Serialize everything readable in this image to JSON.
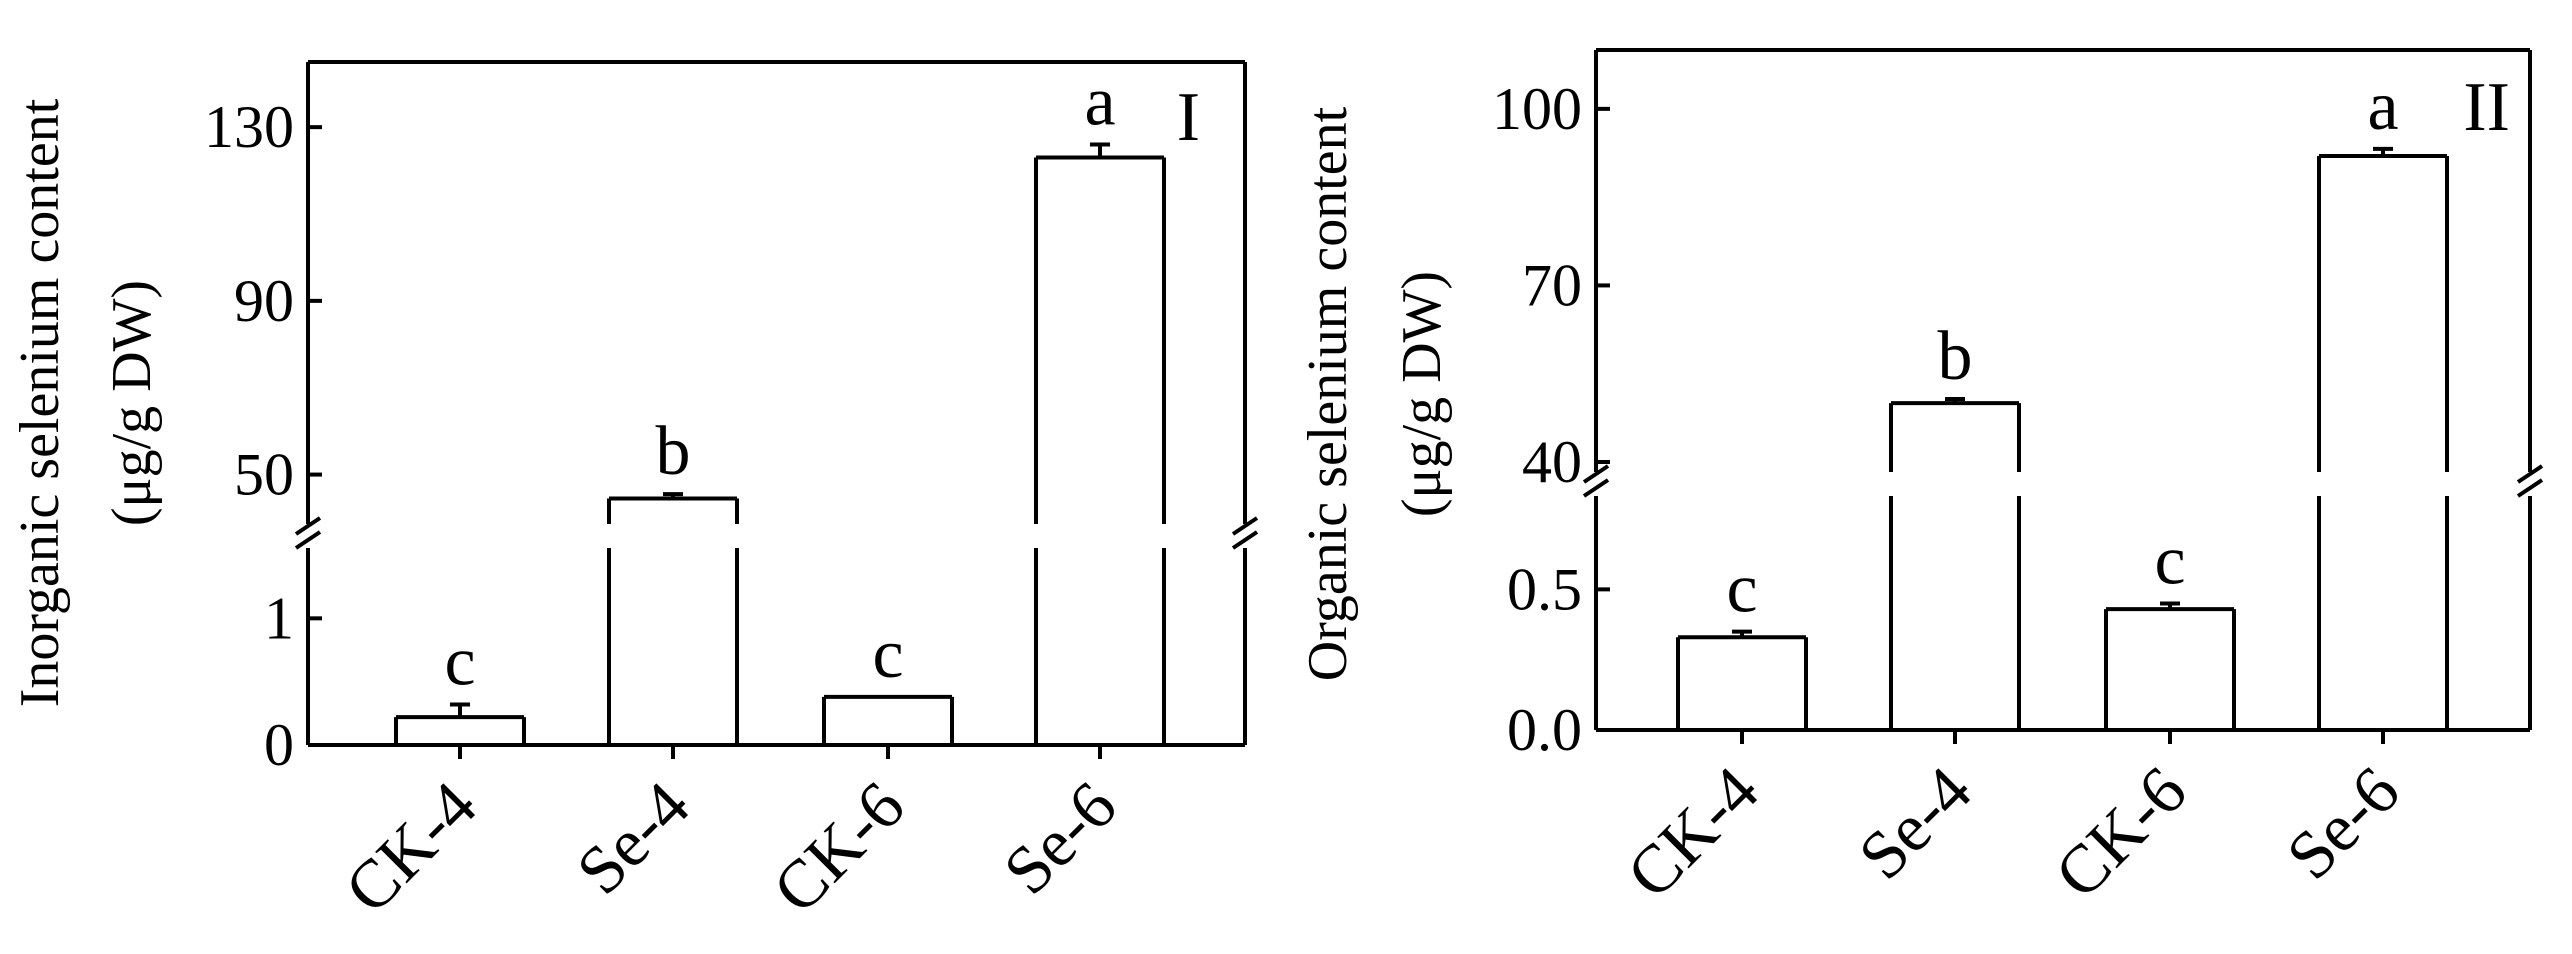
{
  "chart_data": [
    {
      "type": "bar",
      "panel_label": "I",
      "ylabel_line1": "Inorganic selenium content",
      "ylabel_line2": "(μg/g DW)",
      "categories": [
        "CK-4",
        "Se-4",
        "CK-6",
        "Se-6"
      ],
      "values": [
        0.22,
        44.5,
        0.38,
        123
      ],
      "errors": [
        0.1,
        1.0,
        0.0,
        3.0
      ],
      "significance": [
        "c",
        "b",
        "c",
        "a"
      ],
      "axis_break": true,
      "lower_segment": {
        "range": [
          0,
          1.5
        ],
        "ticks": [
          "0",
          "1"
        ],
        "tick_values": [
          0,
          1
        ]
      },
      "upper_segment": {
        "range": [
          40,
          145
        ],
        "ticks": [
          "50",
          "90",
          "130"
        ],
        "tick_values": [
          50,
          90,
          130
        ]
      }
    },
    {
      "type": "bar",
      "panel_label": "II",
      "ylabel_line1": "Organic selenium content",
      "ylabel_line2": "(μg/g DW)",
      "categories": [
        "CK-4",
        "Se-4",
        "CK-6",
        "Se-6"
      ],
      "values": [
        0.33,
        50,
        0.43,
        92
      ],
      "errors": [
        0.02,
        0.7,
        0.02,
        1.2
      ],
      "significance": [
        "c",
        "b",
        "c",
        "a"
      ],
      "axis_break": true,
      "lower_segment": {
        "range": [
          0,
          0.8
        ],
        "ticks": [
          "0.0",
          "0.5"
        ],
        "tick_values": [
          0,
          0.5
        ]
      },
      "upper_segment": {
        "range": [
          40,
          110
        ],
        "ticks": [
          "40",
          "70",
          "100"
        ],
        "tick_values": [
          40,
          70,
          100
        ]
      }
    }
  ]
}
